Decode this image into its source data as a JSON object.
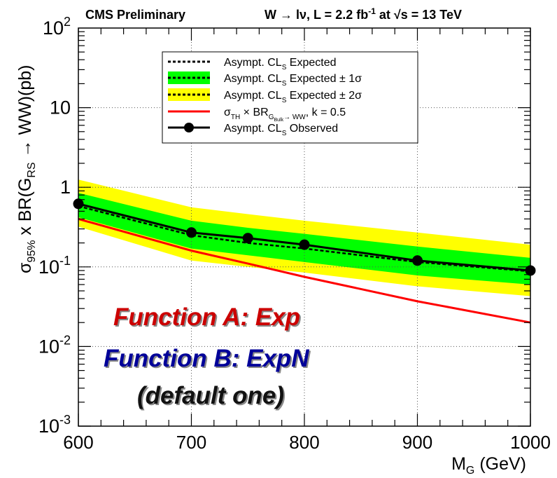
{
  "header": {
    "left": "CMS Preliminary",
    "right_prefix": "W → lν, L = 2.2 fb",
    "right_sup": "-1",
    "right_mid": " at √s = 13 TeV"
  },
  "annotations": {
    "function_a": "Function A: Exp",
    "function_b": "Function B: ExpN",
    "default": "(default one)"
  },
  "colors": {
    "band_1sigma": "#00ff00",
    "band_2sigma": "#ffff00",
    "theory": "#ff0000",
    "observed": "#000000",
    "function_a_text": "#cc0000",
    "function_b_text": "#000099"
  },
  "chart_data": {
    "type": "line",
    "x_scale": "linear",
    "y_scale": "log",
    "xlim": [
      600,
      1000
    ],
    "ylim": [
      0.001,
      100
    ],
    "xlabel_main": "M",
    "xlabel_sub": "G",
    "xlabel_tail": " (GeV)",
    "ylabel_parts": {
      "sigma": "σ",
      "sigma_sub": "95%",
      "mid": " x BR(G",
      "g_sub": "RS",
      "tail": " → WW)(pb)"
    },
    "x_tick_labels": [
      "600",
      "700",
      "800",
      "900",
      "1000"
    ],
    "x_ticks": [
      600,
      700,
      800,
      900,
      1000
    ],
    "y_ticks": [
      {
        "value": 0.001,
        "base": "10",
        "exp": "-3"
      },
      {
        "value": 0.01,
        "base": "10",
        "exp": "-2"
      },
      {
        "value": 0.1,
        "base": "10",
        "exp": "-1"
      },
      {
        "value": 1,
        "base": "1",
        "exp": ""
      },
      {
        "value": 10,
        "base": "10",
        "exp": ""
      },
      {
        "value": 100,
        "base": "10",
        "exp": "2"
      }
    ],
    "grid": true,
    "legend_position": "top-center",
    "legend": [
      {
        "label": "Asympt. CL",
        "sub": "S",
        "tail": " Expected"
      },
      {
        "label": "Asympt. CL",
        "sub": "S",
        "tail": " Expected ± 1σ"
      },
      {
        "label": "Asympt. CL",
        "sub": "S",
        "tail": " Expected ± 2σ"
      },
      {
        "label": "σ",
        "sub": "TH",
        "tail": " × BR",
        "sub2": "G",
        "sub3": "Bulk",
        "tail2": "→ WW",
        "tail3": ", k = 0.5"
      },
      {
        "label": "Asympt. CL",
        "sub": "S",
        "tail": " Observed"
      }
    ],
    "x": [
      600,
      700,
      750,
      800,
      900,
      1000
    ],
    "series": [
      {
        "name": "Asympt. CL_S Expected",
        "values": [
          0.58,
          0.25,
          0.2,
          0.17,
          0.115,
          0.088
        ]
      },
      {
        "name": "Asympt. CL_S Observed",
        "values": [
          0.62,
          0.27,
          0.23,
          0.19,
          0.12,
          0.09
        ]
      },
      {
        "name": "σ_TH × BR(G_Bulk→WW), k = 0.5",
        "values": [
          0.4,
          0.16,
          0.11,
          0.075,
          0.037,
          0.02
        ]
      }
    ],
    "band_1sigma": {
      "low": [
        0.42,
        0.17,
        0.14,
        0.115,
        0.078,
        0.06
      ],
      "high": [
        0.85,
        0.38,
        0.31,
        0.26,
        0.18,
        0.13
      ]
    },
    "band_2sigma": {
      "low": [
        0.32,
        0.12,
        0.1,
        0.085,
        0.057,
        0.043
      ],
      "high": [
        1.25,
        0.56,
        0.46,
        0.38,
        0.27,
        0.19
      ]
    }
  }
}
